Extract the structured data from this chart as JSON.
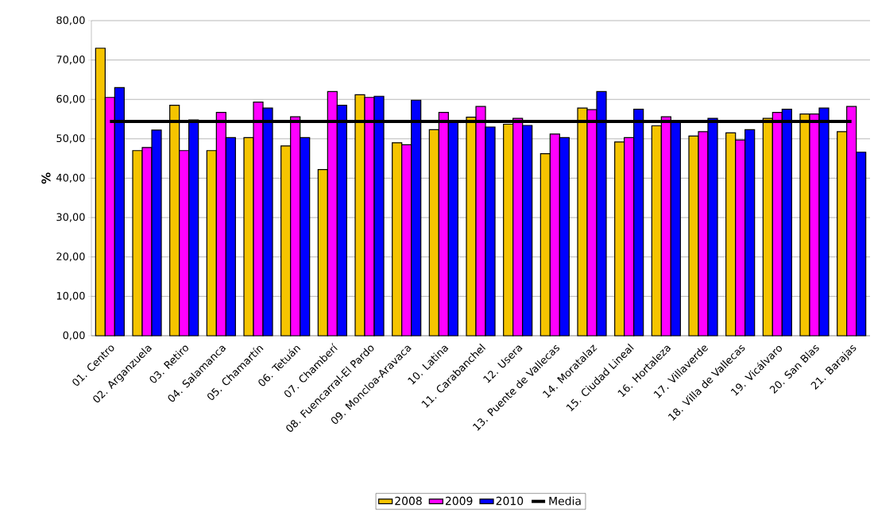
{
  "chart_data": {
    "type": "bar",
    "ylabel": "%",
    "categories": [
      "01. Centro",
      "02. Arganzuela",
      "03. Retiro",
      "04. Salamanca",
      "05. Chamartín",
      "06. Tetuán",
      "07. Chamberí",
      "08. Fuencarral-El Pardo",
      "09. Moncloa-Aravaca",
      "10. Latina",
      "11. Carabanchel",
      "12. Usera",
      "13. Puente de Vallecas",
      "14. Moratalaz",
      "15. Ciudad Lineal",
      "16. Hortaleza",
      "17. Villaverde",
      "18. Villa de Vallecas",
      "19. Vicálvaro",
      "20. San Blas",
      "21. Barajas"
    ],
    "series": [
      {
        "name": "2008",
        "color": "#f5c400",
        "values": [
          73.0,
          47.0,
          58.5,
          47.0,
          50.3,
          48.2,
          42.2,
          61.2,
          49.0,
          52.3,
          55.5,
          53.7,
          46.2,
          57.8,
          49.2,
          53.3,
          50.7,
          51.5,
          55.2,
          56.3,
          51.8
        ]
      },
      {
        "name": "2009",
        "color": "#ff00ff",
        "values": [
          60.5,
          47.8,
          47.0,
          56.7,
          59.3,
          55.6,
          62.0,
          60.5,
          48.5,
          56.7,
          58.2,
          55.2,
          51.2,
          57.4,
          50.3,
          55.6,
          51.8,
          49.7,
          56.7,
          56.3,
          58.2
        ]
      },
      {
        "name": "2010",
        "color": "#0000ff",
        "values": [
          63.0,
          52.2,
          54.8,
          50.3,
          57.8,
          50.3,
          58.5,
          60.8,
          59.8,
          54.5,
          53.0,
          53.4,
          50.3,
          62.0,
          57.5,
          54.5,
          55.2,
          52.3,
          57.5,
          57.8,
          46.6
        ]
      },
      {
        "name": "Media",
        "type": "line",
        "color": "#000000",
        "values": [
          54.4,
          54.4,
          54.4,
          54.4,
          54.4,
          54.4,
          54.4,
          54.4,
          54.4,
          54.4,
          54.4,
          54.4,
          54.4,
          54.4,
          54.4,
          54.4,
          54.4,
          54.4,
          54.4,
          54.4,
          54.4
        ]
      }
    ],
    "ylim": [
      0,
      80
    ],
    "yticks": [
      {
        "value": 0,
        "label": "0,00"
      },
      {
        "value": 10,
        "label": "10,00"
      },
      {
        "value": 20,
        "label": "20,00"
      },
      {
        "value": 30,
        "label": "30,00"
      },
      {
        "value": 40,
        "label": "40,00"
      },
      {
        "value": 50,
        "label": "50,00"
      },
      {
        "value": 60,
        "label": "60,00"
      },
      {
        "value": 70,
        "label": "70,00"
      },
      {
        "value": 80,
        "label": "80,00"
      }
    ],
    "grid": "y",
    "legend": "bottom"
  }
}
